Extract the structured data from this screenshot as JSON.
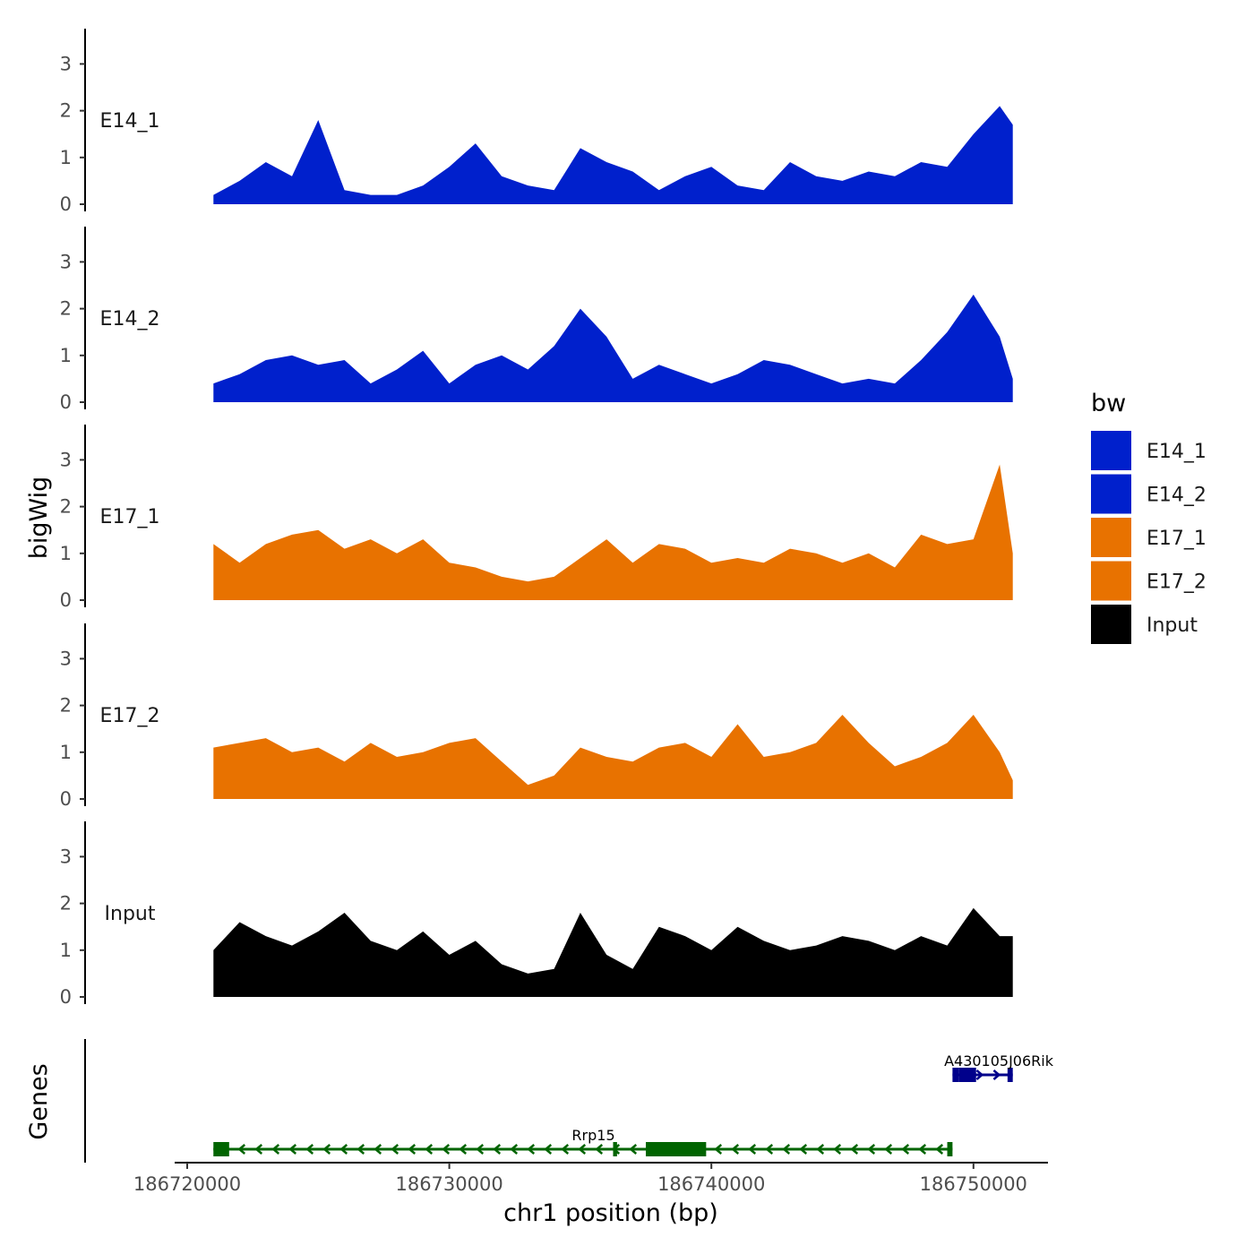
{
  "chart_data": {
    "type": "area",
    "ylabel": "bigWig",
    "xlabel": "chr1 position (bp)",
    "xlim": [
      186721000,
      186751500
    ],
    "ylim": [
      0,
      3.6
    ],
    "yticks": [
      "0",
      "1",
      "2",
      "3"
    ],
    "xticks": [
      {
        "value": 186720000,
        "label": "186720000"
      },
      {
        "value": 186730000,
        "label": "186730000"
      },
      {
        "value": 186740000,
        "label": "186740000"
      },
      {
        "value": 186750000,
        "label": "186750000"
      }
    ],
    "x": [
      186721000,
      186722000,
      186723000,
      186724000,
      186725000,
      186726000,
      186727000,
      186728000,
      186729000,
      186730000,
      186731000,
      186732000,
      186733000,
      186734000,
      186735000,
      186736000,
      186737000,
      186738000,
      186739000,
      186740000,
      186741000,
      186742000,
      186743000,
      186744000,
      186745000,
      186746000,
      186747000,
      186748000,
      186749000,
      186750000,
      186751000,
      186751500
    ],
    "tracks": [
      {
        "name": "E14_1",
        "color": "#0020CC",
        "values": [
          0.2,
          0.5,
          0.9,
          0.6,
          1.8,
          0.3,
          0.2,
          0.2,
          0.4,
          0.8,
          1.3,
          0.6,
          0.4,
          0.3,
          1.2,
          0.9,
          0.7,
          0.3,
          0.6,
          0.8,
          0.4,
          0.3,
          0.9,
          0.6,
          0.5,
          0.7,
          0.6,
          0.9,
          0.8,
          1.5,
          2.1,
          1.7
        ]
      },
      {
        "name": "E14_2",
        "color": "#0020CC",
        "values": [
          0.4,
          0.6,
          0.9,
          1.0,
          0.8,
          0.9,
          0.4,
          0.7,
          1.1,
          0.4,
          0.8,
          1.0,
          0.7,
          1.2,
          2.0,
          1.4,
          0.5,
          0.8,
          0.6,
          0.4,
          0.6,
          0.9,
          0.8,
          0.6,
          0.4,
          0.5,
          0.4,
          0.9,
          1.5,
          2.3,
          1.4,
          0.5
        ]
      },
      {
        "name": "E17_1",
        "color": "#E87200",
        "values": [
          1.2,
          0.8,
          1.2,
          1.4,
          1.5,
          1.1,
          1.3,
          1.0,
          1.3,
          0.8,
          0.7,
          0.5,
          0.4,
          0.5,
          0.9,
          1.3,
          0.8,
          1.2,
          1.1,
          0.8,
          0.9,
          0.8,
          1.1,
          1.0,
          0.8,
          1.0,
          0.7,
          1.4,
          1.2,
          1.3,
          2.9,
          1.0
        ]
      },
      {
        "name": "E17_2",
        "color": "#E87200",
        "values": [
          1.1,
          1.2,
          1.3,
          1.0,
          1.1,
          0.8,
          1.2,
          0.9,
          1.0,
          1.2,
          1.3,
          0.8,
          0.3,
          0.5,
          1.1,
          0.9,
          0.8,
          1.1,
          1.2,
          0.9,
          1.6,
          0.9,
          1.0,
          1.2,
          1.8,
          1.2,
          0.7,
          0.9,
          1.2,
          1.8,
          1.0,
          0.4
        ]
      },
      {
        "name": "Input",
        "color": "#000000",
        "values": [
          1.0,
          1.6,
          1.3,
          1.1,
          1.4,
          1.8,
          1.2,
          1.0,
          1.4,
          0.9,
          1.2,
          0.7,
          0.5,
          0.6,
          1.8,
          0.9,
          0.6,
          1.5,
          1.3,
          1.0,
          1.5,
          1.2,
          1.0,
          1.1,
          1.3,
          1.2,
          1.0,
          1.3,
          1.1,
          1.9,
          1.3,
          1.3
        ]
      }
    ],
    "gene_track_label": "Genes",
    "genes": [
      {
        "name": "A430105J06Rik",
        "strand": "+",
        "start": 186749200,
        "end": 186751500,
        "color": "#00008B",
        "exons": [
          [
            186749200,
            186749450
          ],
          [
            186749450,
            186750100
          ],
          [
            186751300,
            186751500
          ]
        ]
      },
      {
        "name": "Rrp15",
        "strand": "-",
        "start": 186721000,
        "end": 186749200,
        "color": "#006400",
        "exons": [
          [
            186721000,
            186721600
          ],
          [
            186736250,
            186736400
          ],
          [
            186737500,
            186739800
          ],
          [
            186749000,
            186749200
          ]
        ]
      }
    ],
    "legend": {
      "title": "bw",
      "entries": [
        {
          "label": "E14_1",
          "color": "#0020CC"
        },
        {
          "label": "E14_2",
          "color": "#0020CC"
        },
        {
          "label": "E17_1",
          "color": "#E87200"
        },
        {
          "label": "E17_2",
          "color": "#E87200"
        },
        {
          "label": "Input",
          "color": "#000000"
        }
      ]
    }
  }
}
